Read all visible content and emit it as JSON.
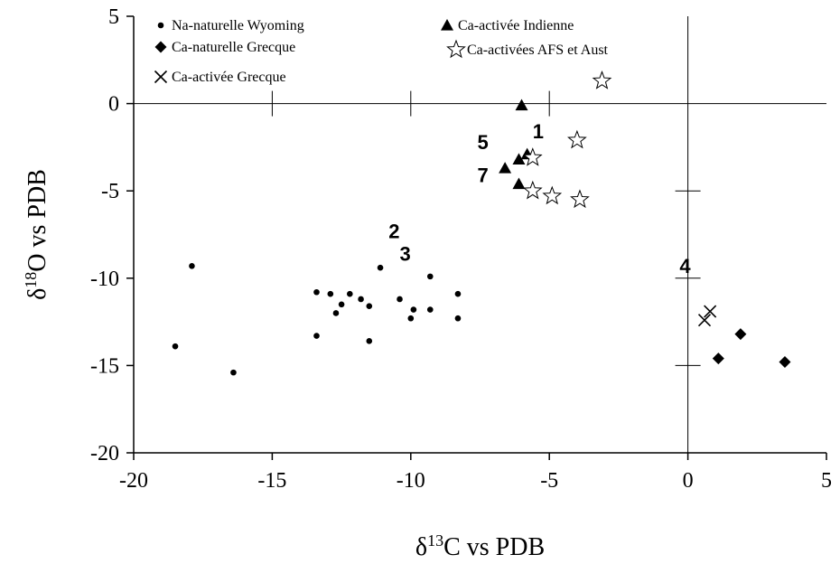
{
  "chart_data": {
    "type": "scatter",
    "xlabel": {
      "base": "δ",
      "sup": "13",
      "rest": "C vs PDB"
    },
    "ylabel": {
      "base": "δ",
      "sup": "18",
      "rest": "O vs PDB"
    },
    "xlim": [
      -20,
      5
    ],
    "ylim": [
      -20,
      5
    ],
    "xticks": [
      "-20",
      "-15",
      "-10",
      "-5",
      "0",
      "5"
    ],
    "yticks": [
      "-20",
      "-15",
      "-10",
      "-5",
      "0",
      "5"
    ],
    "grid": false,
    "legend_position": "top",
    "series": [
      {
        "name": "Na-naturelle Wyoming",
        "marker": "circle",
        "points": [
          [
            -18.5,
            -13.9
          ],
          [
            -17.9,
            -9.3
          ],
          [
            -16.4,
            -15.4
          ],
          [
            -13.4,
            -10.8
          ],
          [
            -13.4,
            -13.3
          ],
          [
            -12.9,
            -10.9
          ],
          [
            -12.7,
            -12.0
          ],
          [
            -12.5,
            -11.5
          ],
          [
            -12.2,
            -10.9
          ],
          [
            -11.8,
            -11.2
          ],
          [
            -11.5,
            -11.6
          ],
          [
            -11.5,
            -13.6
          ],
          [
            -11.1,
            -9.4
          ],
          [
            -10.4,
            -11.2
          ],
          [
            -10.0,
            -12.3
          ],
          [
            -9.9,
            -11.8
          ],
          [
            -9.3,
            -9.9
          ],
          [
            -9.3,
            -11.8
          ],
          [
            -8.3,
            -10.9
          ],
          [
            -8.3,
            -12.3
          ]
        ]
      },
      {
        "name": "Ca-naturelle Grecque",
        "marker": "diamond",
        "points": [
          [
            1.1,
            -14.6
          ],
          [
            1.9,
            -13.2
          ],
          [
            3.5,
            -14.8
          ]
        ]
      },
      {
        "name": "Ca-activée Grecque",
        "marker": "x",
        "points": [
          [
            0.8,
            -11.9
          ],
          [
            0.6,
            -12.4
          ]
        ]
      },
      {
        "name": "Ca-activée Indienne",
        "marker": "triangle",
        "points": [
          [
            -6.0,
            -0.1
          ],
          [
            -5.8,
            -2.9
          ],
          [
            -6.1,
            -3.2
          ],
          [
            -6.6,
            -3.7
          ],
          [
            -6.1,
            -4.6
          ]
        ]
      },
      {
        "name": "Ca-activées AFS et Aust",
        "marker": "star",
        "points": [
          [
            -3.1,
            1.3
          ],
          [
            -4.0,
            -2.1
          ],
          [
            -5.6,
            -3.1
          ],
          [
            -5.6,
            -5.0
          ],
          [
            -4.9,
            -5.3
          ],
          [
            -3.9,
            -5.5
          ]
        ]
      }
    ],
    "annotations": [
      {
        "text": "1",
        "x": -5.4,
        "y": -2.0
      },
      {
        "text": "5",
        "x": -7.4,
        "y": -2.6
      },
      {
        "text": "7",
        "x": -7.4,
        "y": -4.5
      },
      {
        "text": "2",
        "x": -10.6,
        "y": -7.7
      },
      {
        "text": "3",
        "x": -10.2,
        "y": -9.0
      },
      {
        "text": "4",
        "x": -0.1,
        "y": -9.7
      }
    ],
    "reference_lines": {
      "h_at_y": 0,
      "v_at_x": 0,
      "h_ticks_x": [
        -15,
        -10,
        -5
      ],
      "v_ticks_y": [
        -5,
        -10,
        -15
      ]
    },
    "colors": {
      "axis": "#000000",
      "marker": "#000000",
      "hollow": "#ffffff"
    }
  }
}
